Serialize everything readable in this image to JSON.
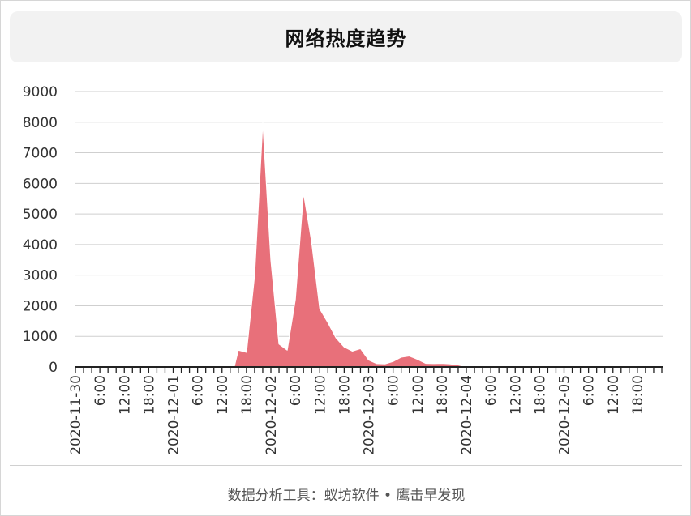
{
  "header": {
    "title": "网络热度趋势"
  },
  "footer": {
    "text": "数据分析工具：蚁坊软件 • 鹰击早发现"
  },
  "colors": {
    "area_fill": "#e8707a",
    "grid": "#cfcfcf",
    "axis": "#222222",
    "text": "#333333"
  },
  "chart_data": {
    "type": "area",
    "title": "网络热度趋势",
    "xlabel": "",
    "ylabel": "",
    "ylim": [
      0,
      9000
    ],
    "yticks": [
      0,
      1000,
      2000,
      3000,
      4000,
      5000,
      6000,
      7000,
      8000,
      9000
    ],
    "grid": true,
    "x_unit": "hours from 2020-11-30 00:00",
    "xlim": [
      0,
      144
    ],
    "x_tick_step_hours": 2,
    "x_labels": [
      {
        "x": 0,
        "label": "2020-11-30"
      },
      {
        "x": 6,
        "label": "6:00"
      },
      {
        "x": 12,
        "label": "12:00"
      },
      {
        "x": 18,
        "label": "18:00"
      },
      {
        "x": 24,
        "label": "2020-12-01"
      },
      {
        "x": 30,
        "label": "6:00"
      },
      {
        "x": 36,
        "label": "12:00"
      },
      {
        "x": 42,
        "label": "18:00"
      },
      {
        "x": 48,
        "label": "2020-12-02"
      },
      {
        "x": 54,
        "label": "6:00"
      },
      {
        "x": 60,
        "label": "12:00"
      },
      {
        "x": 66,
        "label": "18:00"
      },
      {
        "x": 72,
        "label": "2020-12-03"
      },
      {
        "x": 78,
        "label": "6:00"
      },
      {
        "x": 84,
        "label": "12:00"
      },
      {
        "x": 90,
        "label": "18:00"
      },
      {
        "x": 96,
        "label": "2020-12-04"
      },
      {
        "x": 102,
        "label": "6:00"
      },
      {
        "x": 108,
        "label": "12:00"
      },
      {
        "x": 114,
        "label": "18:00"
      },
      {
        "x": 120,
        "label": "2020-12-05"
      },
      {
        "x": 126,
        "label": "6:00"
      },
      {
        "x": 132,
        "label": "12:00"
      },
      {
        "x": 138,
        "label": "18:00"
      }
    ],
    "series": [
      {
        "values": [
          [
            0,
            0
          ],
          [
            2,
            0
          ],
          [
            4,
            0
          ],
          [
            6,
            0
          ],
          [
            8,
            0
          ],
          [
            10,
            0
          ],
          [
            12,
            0
          ],
          [
            14,
            0
          ],
          [
            16,
            0
          ],
          [
            18,
            0
          ],
          [
            20,
            0
          ],
          [
            22,
            0
          ],
          [
            24,
            0
          ],
          [
            26,
            0
          ],
          [
            28,
            0
          ],
          [
            30,
            0
          ],
          [
            32,
            0
          ],
          [
            34,
            0
          ],
          [
            36,
            0
          ],
          [
            38,
            0
          ],
          [
            39,
            0
          ],
          [
            40,
            550
          ],
          [
            42,
            480
          ],
          [
            44,
            3000
          ],
          [
            46,
            8000
          ],
          [
            48,
            3500
          ],
          [
            50,
            750
          ],
          [
            52,
            550
          ],
          [
            54,
            2200
          ],
          [
            56,
            5700
          ],
          [
            58,
            4100
          ],
          [
            60,
            1900
          ],
          [
            62,
            1450
          ],
          [
            64,
            950
          ],
          [
            66,
            650
          ],
          [
            68,
            520
          ],
          [
            70,
            600
          ],
          [
            72,
            230
          ],
          [
            74,
            110
          ],
          [
            76,
            100
          ],
          [
            78,
            180
          ],
          [
            80,
            320
          ],
          [
            82,
            360
          ],
          [
            84,
            250
          ],
          [
            86,
            120
          ],
          [
            88,
            110
          ],
          [
            90,
            120
          ],
          [
            92,
            100
          ],
          [
            94,
            70
          ],
          [
            96,
            0
          ],
          [
            98,
            0
          ],
          [
            100,
            0
          ],
          [
            102,
            0
          ],
          [
            104,
            0
          ],
          [
            106,
            0
          ],
          [
            108,
            0
          ],
          [
            110,
            0
          ],
          [
            112,
            0
          ],
          [
            114,
            0
          ],
          [
            116,
            0
          ],
          [
            118,
            0
          ],
          [
            120,
            0
          ],
          [
            122,
            0
          ],
          [
            124,
            0
          ],
          [
            126,
            0
          ],
          [
            128,
            0
          ],
          [
            130,
            0
          ],
          [
            132,
            0
          ],
          [
            134,
            0
          ],
          [
            136,
            0
          ],
          [
            138,
            0
          ],
          [
            140,
            0
          ],
          [
            142,
            0
          ],
          [
            144,
            0
          ]
        ]
      }
    ]
  }
}
